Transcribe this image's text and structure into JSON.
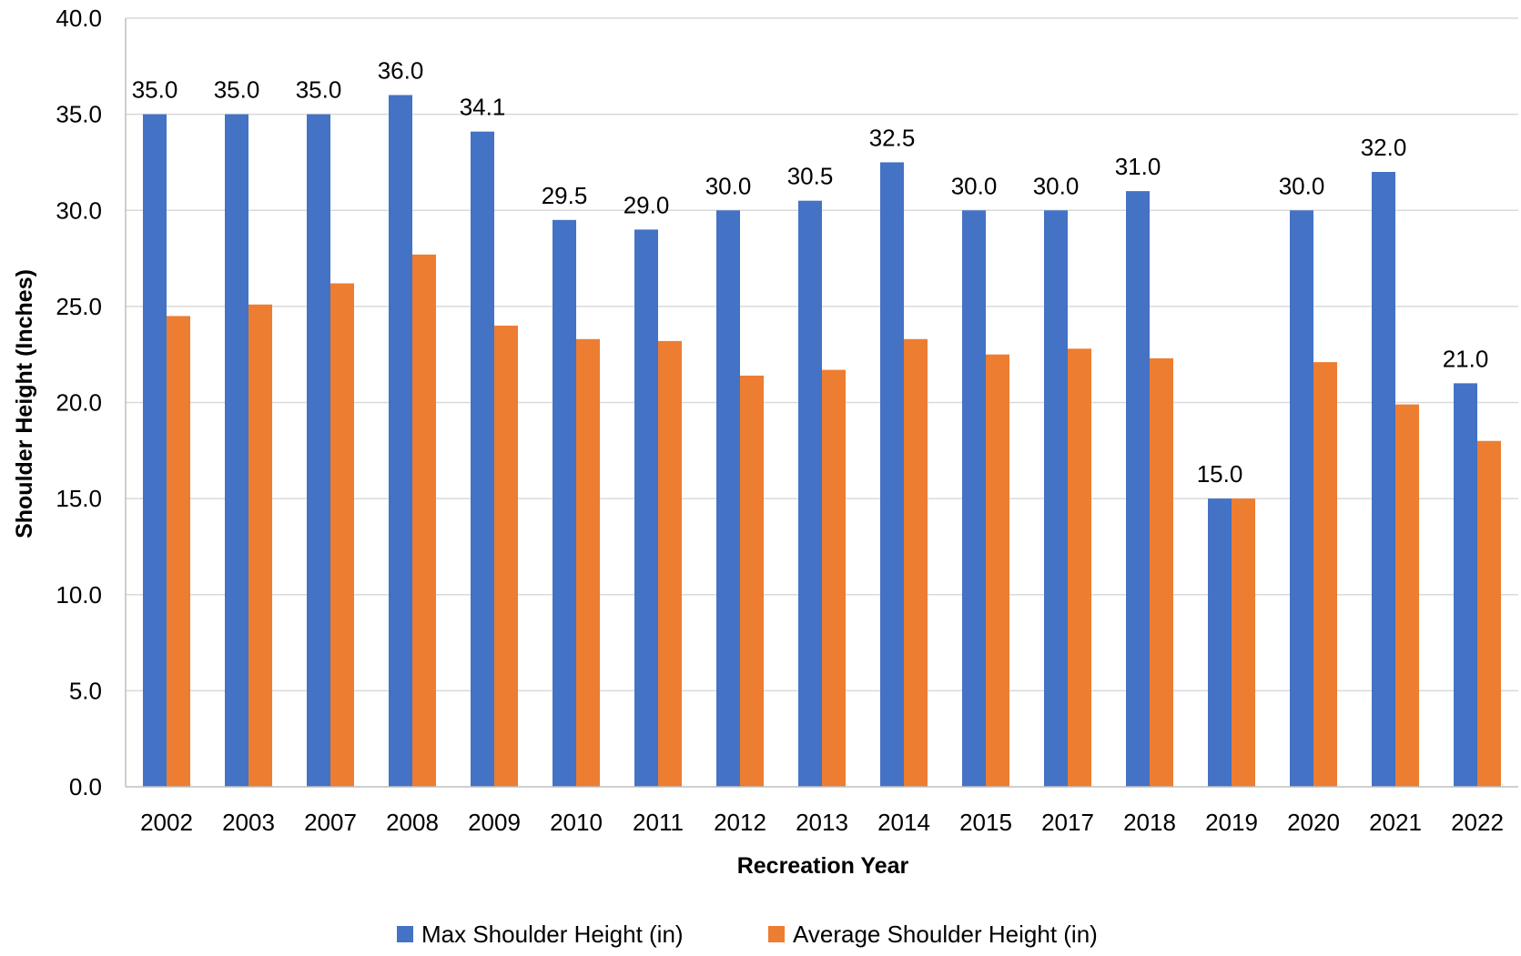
{
  "chart_data": {
    "type": "bar",
    "xlabel": "Recreation Year",
    "ylabel": "Shoulder Height (Inches)",
    "ylim": [
      0,
      40
    ],
    "ytick_step": 5,
    "ytick_format_decimals": 1,
    "grid": "horizontal",
    "legend_position": "bottom",
    "categories": [
      "2002",
      "2003",
      "2007",
      "2008",
      "2009",
      "2010",
      "2011",
      "2012",
      "2013",
      "2014",
      "2015",
      "2017",
      "2018",
      "2019",
      "2020",
      "2021",
      "2022"
    ],
    "series": [
      {
        "name": "Max Shoulder Height (in)",
        "color": "#4472C4",
        "show_data_labels": true,
        "values": [
          35.0,
          35.0,
          35.0,
          36.0,
          34.1,
          29.5,
          29.0,
          30.0,
          30.5,
          32.5,
          30.0,
          30.0,
          31.0,
          15.0,
          30.0,
          32.0,
          21.0
        ]
      },
      {
        "name": "Average Shoulder Height (in)",
        "color": "#ED7D31",
        "show_data_labels": false,
        "values": [
          24.5,
          25.1,
          26.2,
          27.7,
          24.0,
          23.3,
          23.2,
          21.4,
          21.7,
          23.3,
          22.5,
          22.8,
          22.3,
          15.0,
          22.1,
          19.9,
          18.0
        ]
      }
    ]
  }
}
